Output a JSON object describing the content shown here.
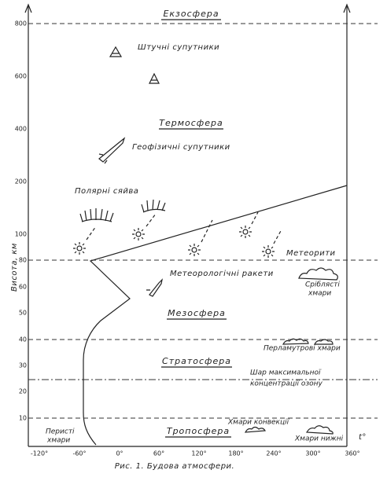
{
  "layers": [
    "Екзосфера",
    "Термосфера",
    "Мезосфера",
    "Стратосфера",
    "Тропосфера"
  ],
  "objects": {
    "artificial_satellites": "Штучні супутники",
    "geophysical_satellites": "Геофізичні супутники",
    "polar_lights": "Полярні сяйва",
    "meteorites": "Метеорити",
    "meteo_rockets": "Метеорологічні ракети",
    "noctilucent_clouds": [
      "Сріблясті",
      "хмари"
    ],
    "nacreous_clouds": "Перламутрові хмари",
    "ozone_layer": [
      "Шар максимальної",
      "концентрації озону"
    ],
    "convection_clouds": "Хмари конвекції",
    "cirrus_clouds": [
      "Перисті",
      "хмари"
    ],
    "low_clouds": "Хмари нижні"
  },
  "y_axis": {
    "label": "Висота, км",
    "ticks": [
      "800",
      "600",
      "400",
      "200",
      "100",
      "80",
      "60",
      "50",
      "40",
      "30",
      "20",
      "10"
    ]
  },
  "x_axis": {
    "ticks": [
      "-120°",
      "-60°",
      "0°",
      "60°",
      "120°",
      "180°",
      "240°",
      "300°",
      "360°"
    ],
    "unit": "t°"
  },
  "caption": "Рис. 1. Будова атмосфери."
}
